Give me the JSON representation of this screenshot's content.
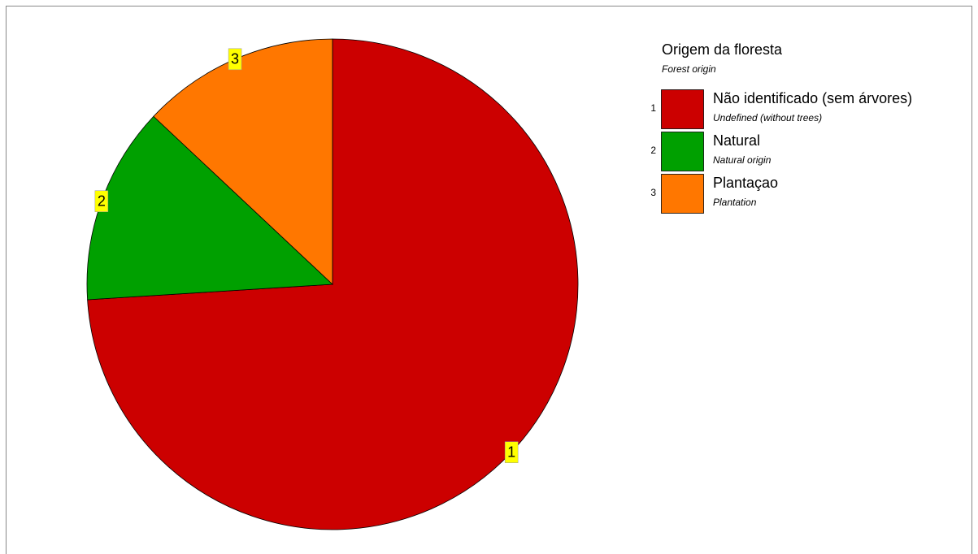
{
  "chart_data": {
    "type": "pie",
    "title": "Origem da floresta",
    "subtitle": "Forest origin",
    "categories": [
      "Não identificado (sem árvores)",
      "Natural",
      "Plantaçao"
    ],
    "category_subtitles": [
      "Undefined (without trees)",
      "Natural origin",
      "Plantation"
    ],
    "slice_labels": [
      "1",
      "2",
      "3"
    ],
    "values": [
      74,
      13,
      13
    ],
    "colors": [
      "#cc0000",
      "#00a000",
      "#ff7700"
    ]
  }
}
